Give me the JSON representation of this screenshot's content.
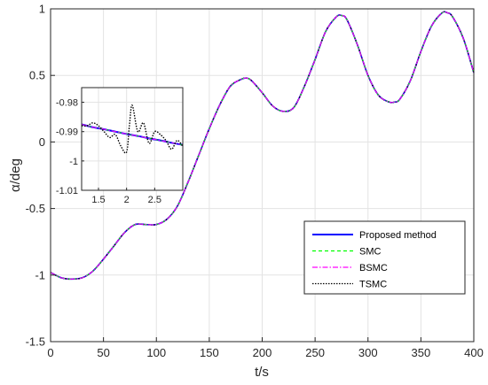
{
  "chart_data": {
    "type": "line",
    "title": "",
    "xlabel": "t/s",
    "ylabel": "α/deg",
    "xlim": [
      0,
      400
    ],
    "ylim": [
      -1.5,
      1
    ],
    "xticks": [
      "0",
      "50",
      "100",
      "150",
      "200",
      "250",
      "300",
      "350",
      "400"
    ],
    "yticks": [
      "-1.5",
      "-1",
      "-0.5",
      "0",
      "0.5",
      "1"
    ],
    "grid": true,
    "legend_position": "lower-right",
    "series": [
      {
        "name": "Proposed method",
        "color": "#0000ff",
        "style": "solid"
      },
      {
        "name": "SMC",
        "color": "#00ff00",
        "style": "dashed"
      },
      {
        "name": "BSMC",
        "color": "#ff00ff",
        "style": "dashdot"
      },
      {
        "name": "TSMC",
        "color": "#000000",
        "style": "dotted"
      }
    ],
    "x": [
      0,
      10,
      20,
      30,
      40,
      50,
      60,
      70,
      80,
      90,
      100,
      110,
      120,
      130,
      140,
      150,
      160,
      170,
      180,
      185,
      190,
      200,
      210,
      220,
      230,
      240,
      250,
      260,
      270,
      275,
      280,
      290,
      300,
      310,
      320,
      325,
      330,
      340,
      350,
      360,
      370,
      375,
      380,
      390,
      400
    ],
    "y": [
      -0.98,
      -1.02,
      -1.03,
      -1.02,
      -0.97,
      -0.88,
      -0.78,
      -0.68,
      -0.62,
      -0.62,
      -0.62,
      -0.58,
      -0.48,
      -0.3,
      -0.1,
      0.1,
      0.28,
      0.42,
      0.47,
      0.48,
      0.46,
      0.37,
      0.27,
      0.23,
      0.26,
      0.42,
      0.62,
      0.83,
      0.94,
      0.95,
      0.92,
      0.73,
      0.5,
      0.35,
      0.3,
      0.3,
      0.32,
      0.46,
      0.68,
      0.87,
      0.97,
      0.97,
      0.94,
      0.78,
      0.52
    ],
    "inset": {
      "xlim": [
        1.2,
        3
      ],
      "ylim": [
        -1.01,
        -0.975
      ],
      "xticks": [
        "1.5",
        "2",
        "2.5"
      ],
      "yticks": [
        "-1.01",
        "-1",
        "-0.99",
        "-0.98"
      ],
      "baseline": {
        "x": [
          1.2,
          1.4,
          1.6,
          1.8,
          2.0,
          2.2,
          2.4,
          2.6,
          2.8,
          3.0
        ],
        "y": [
          -0.9875,
          -0.9885,
          -0.9892,
          -0.99,
          -0.9908,
          -0.9915,
          -0.9923,
          -0.993,
          -0.9938,
          -0.9945
        ]
      },
      "tsmc": {
        "x": [
          1.2,
          1.3,
          1.4,
          1.5,
          1.6,
          1.7,
          1.8,
          1.9,
          2.0,
          2.05,
          2.1,
          2.2,
          2.3,
          2.4,
          2.5,
          2.6,
          2.7,
          2.8,
          2.9,
          3.0
        ],
        "y": [
          -0.988,
          -0.988,
          -0.987,
          -0.988,
          -0.99,
          -0.992,
          -0.991,
          -0.995,
          -0.997,
          -0.988,
          -0.981,
          -0.99,
          -0.987,
          -0.994,
          -0.99,
          -0.991,
          -0.993,
          -0.996,
          -0.993,
          -0.995
        ]
      }
    }
  }
}
